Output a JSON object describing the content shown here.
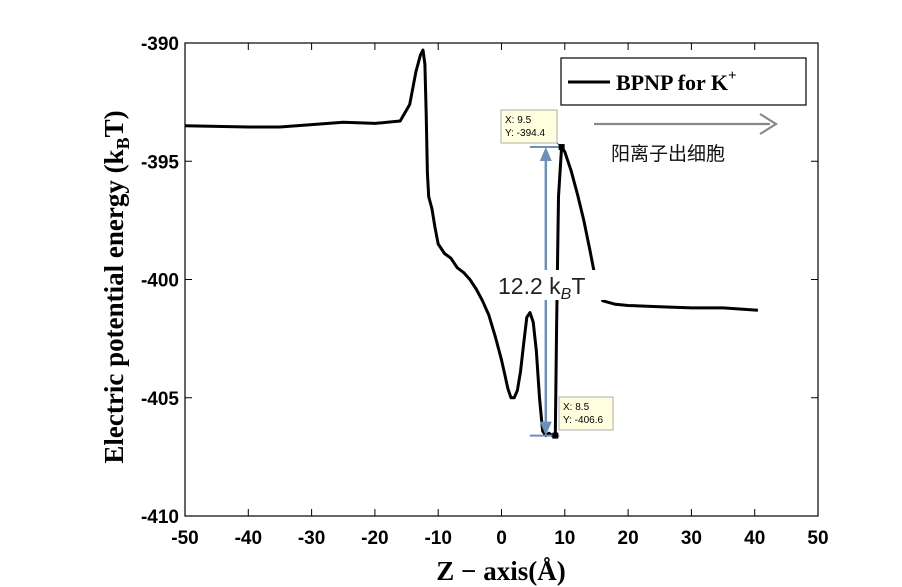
{
  "chart_data": {
    "type": "line",
    "xlabel": "Z − axis(Å)",
    "ylabel_main": "Electric potential energy (k",
    "ylabel_sub": "B",
    "ylabel_end": "T)",
    "xlim": [
      -50,
      50
    ],
    "ylim": [
      -410,
      -390
    ],
    "xticks": [
      -50,
      -40,
      -30,
      -20,
      -10,
      0,
      10,
      20,
      30,
      40,
      50
    ],
    "yticks": [
      -390,
      -395,
      -400,
      -405,
      -410
    ],
    "grid": false,
    "legend_position": "top-right",
    "series": [
      {
        "name": "BPNP for K",
        "name_sup": "+",
        "color": "#000000",
        "x": [
          -50,
          -40,
          -35,
          -30,
          -25,
          -20,
          -16,
          -14.5,
          -13.5,
          -12.8,
          -12.4,
          -12.1,
          -11.9,
          -11.7,
          -11.5,
          -11.3,
          -11,
          -10.5,
          -10,
          -9,
          -8,
          -7,
          -6,
          -5,
          -4,
          -3,
          -2,
          -1,
          0,
          0.5,
          1,
          1.5,
          2,
          2.5,
          3,
          3.5,
          4,
          4.5,
          5,
          5.5,
          6,
          6.5,
          7,
          7.5,
          8,
          8.5,
          8.7,
          9,
          9.5,
          10,
          11,
          12,
          13,
          14,
          15,
          16,
          18,
          20,
          25,
          30,
          35,
          40.5
        ],
        "y": [
          -393.5,
          -393.55,
          -393.55,
          -393.45,
          -393.35,
          -393.4,
          -393.3,
          -392.6,
          -391.2,
          -390.5,
          -390.3,
          -390.9,
          -393.0,
          -395.5,
          -396.5,
          -396.7,
          -397.0,
          -397.8,
          -398.5,
          -398.9,
          -399.1,
          -399.5,
          -399.7,
          -400.0,
          -400.4,
          -400.9,
          -401.5,
          -402.4,
          -403.4,
          -404.0,
          -404.6,
          -405.0,
          -405.0,
          -404.7,
          -403.9,
          -402.7,
          -401.6,
          -401.4,
          -401.8,
          -403.0,
          -405.0,
          -406.4,
          -406.6,
          -406.5,
          -406.6,
          -406.6,
          -402.0,
          -396.5,
          -394.4,
          -394.6,
          -395.4,
          -396.4,
          -397.5,
          -398.8,
          -400.2,
          -400.9,
          -401.05,
          -401.1,
          -401.15,
          -401.2,
          -401.2,
          -401.3
        ]
      }
    ],
    "datatips": [
      {
        "x_text": "X: 9.5",
        "y_text": "Y: -394.4",
        "x": 9.5,
        "y": -394.4
      },
      {
        "x_text": "X: 8.5",
        "y_text": "Y: -406.6",
        "x": 8.5,
        "y": -406.6
      }
    ],
    "annotations": {
      "barrier_value": "12.2 k",
      "barrier_sub": "B",
      "barrier_end": "T",
      "direction_text": "阳离子出细胞"
    },
    "colors": {
      "line": "#000000",
      "annotation_arrow": "#6e8fb8",
      "direction_arrow": "#888888",
      "tip_bg": "#ffffe0"
    }
  }
}
